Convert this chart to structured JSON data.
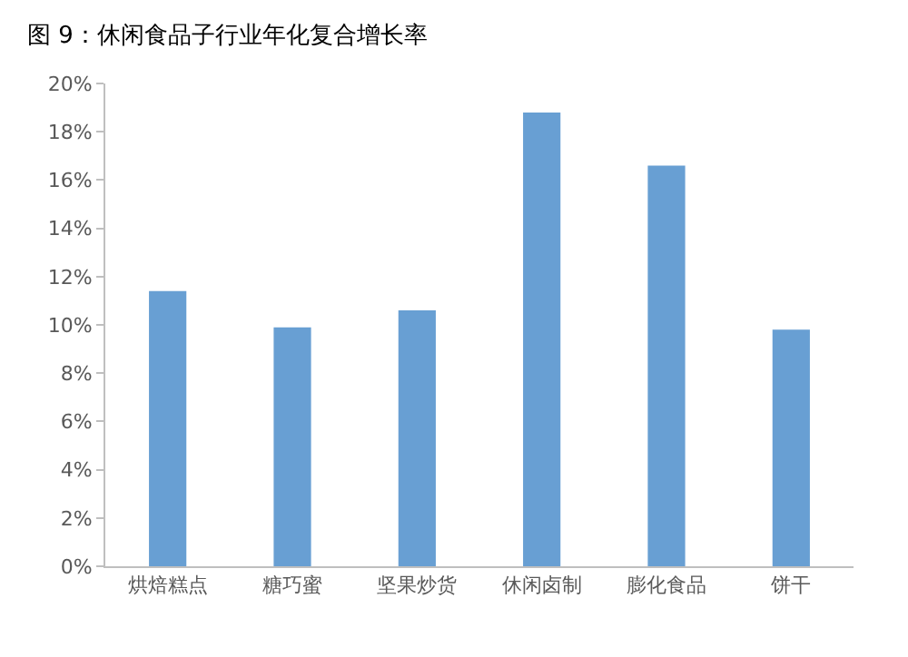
{
  "chart_data": {
    "type": "bar",
    "title": "图 9：休闲食品子行业年化复合增长率",
    "categories": [
      "烘焙糕点",
      "糖巧蜜",
      "坚果炒货",
      "休闲卤制",
      "膨化食品",
      "饼干"
    ],
    "values": [
      11.4,
      9.9,
      10.6,
      18.8,
      16.6,
      9.8
    ],
    "color": "#689fd3",
    "ylim": [
      0,
      20
    ],
    "yticks": [
      {
        "value": 0,
        "label": "0%"
      },
      {
        "value": 2,
        "label": "2%"
      },
      {
        "value": 4,
        "label": "4%"
      },
      {
        "value": 6,
        "label": "6%"
      },
      {
        "value": 8,
        "label": "8%"
      },
      {
        "value": 10,
        "label": "10%"
      },
      {
        "value": 12,
        "label": "12%"
      },
      {
        "value": 14,
        "label": "14%"
      },
      {
        "value": 16,
        "label": "16%"
      },
      {
        "value": 18,
        "label": "18%"
      },
      {
        "value": 20,
        "label": "20%"
      }
    ],
    "grid": false
  }
}
